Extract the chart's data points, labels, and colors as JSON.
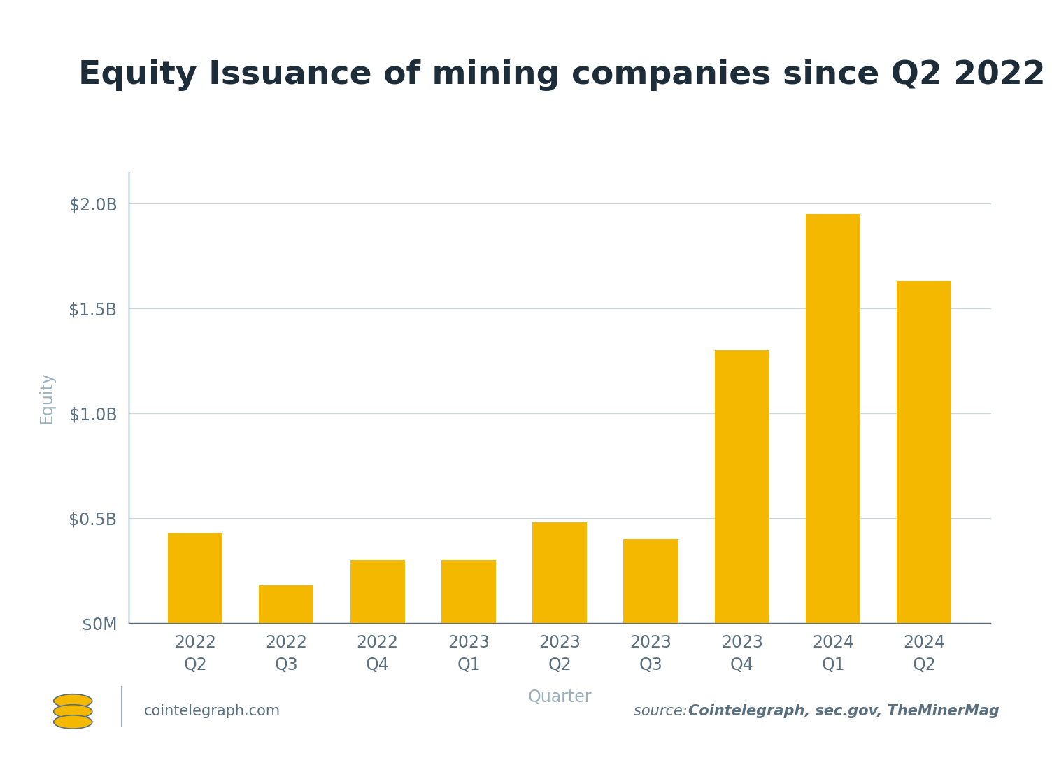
{
  "title": "Equity Issuance of mining companies since Q2 2022",
  "categories": [
    "2022\nQ2",
    "2022\nQ3",
    "2022\nQ4",
    "2023\nQ1",
    "2023\nQ2",
    "2023\nQ3",
    "2023\nQ4",
    "2024\nQ1",
    "2024\nQ2"
  ],
  "values": [
    0.43,
    0.18,
    0.3,
    0.3,
    0.48,
    0.4,
    1.3,
    1.95,
    1.63
  ],
  "bar_color": "#F5B800",
  "ylabel": "Equity",
  "xlabel": "Quarter",
  "ylim": [
    0,
    2.15
  ],
  "yticks": [
    0,
    0.5,
    1.0,
    1.5,
    2.0
  ],
  "ytick_labels": [
    "$0M",
    "$0.5B",
    "$1.0B",
    "$1.5B",
    "$2.0B"
  ],
  "title_fontsize": 34,
  "axis_label_color": "#9ab0bc",
  "tick_label_color": "#5a7080",
  "background_color": "#ffffff",
  "grid_color": "#cdd8de",
  "source_text_italic": "source: ",
  "source_text_bold": "Cointelegraph, sec.gov, TheMinerMag",
  "watermark_text": "cointelegraph.com",
  "spine_color": "#5a7080",
  "title_color": "#1e2d3a"
}
